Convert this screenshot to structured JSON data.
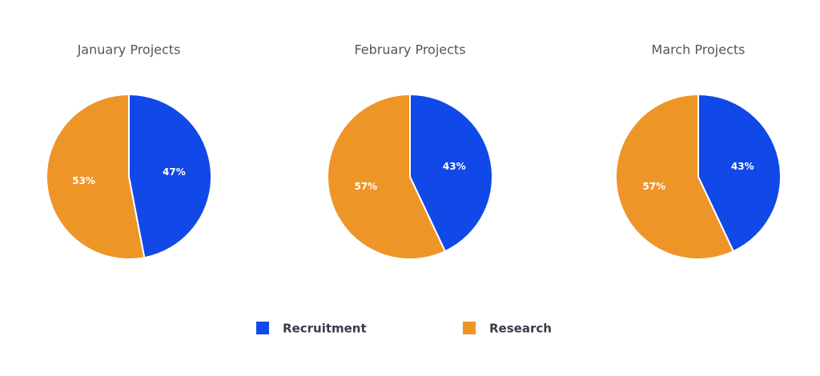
{
  "chart_data": [
    {
      "type": "pie",
      "title": "January Projects",
      "categories": [
        "Recruitment",
        "Research"
      ],
      "values": [
        47,
        53
      ],
      "value_labels": [
        "47%",
        "53%"
      ],
      "colors": [
        "#1149e8",
        "#ee9528"
      ]
    },
    {
      "type": "pie",
      "title": "February Projects",
      "categories": [
        "Recruitment",
        "Research"
      ],
      "values": [
        43,
        57
      ],
      "value_labels": [
        "43%",
        "57%"
      ],
      "colors": [
        "#1149e8",
        "#ee9528"
      ]
    },
    {
      "type": "pie",
      "title": "March Projects",
      "categories": [
        "Recruitment",
        "Research"
      ],
      "values": [
        43,
        57
      ],
      "value_labels": [
        "43%",
        "57%"
      ],
      "colors": [
        "#1149e8",
        "#ee9528"
      ]
    }
  ]
}
